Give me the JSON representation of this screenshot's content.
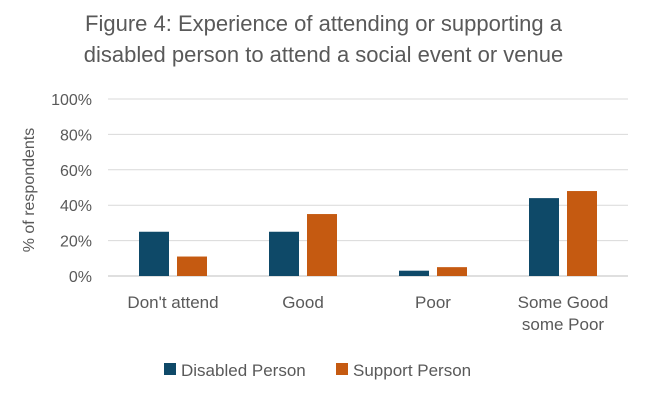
{
  "chart_data": {
    "type": "bar",
    "title_lines": [
      "Figure 4: Experience of attending or supporting a",
      "disabled person to attend a social event or venue"
    ],
    "ylabel": "% of respondents",
    "xlabel": "",
    "ylim": [
      0,
      100
    ],
    "yticks": [
      "0%",
      "20%",
      "40%",
      "60%",
      "80%",
      "100%"
    ],
    "ytick_values": [
      0,
      20,
      40,
      60,
      80,
      100
    ],
    "grid": true,
    "legend_position": "bottom",
    "categories": [
      [
        "Don't attend"
      ],
      [
        "Good"
      ],
      [
        "Poor"
      ],
      [
        "Some Good",
        "some Poor"
      ]
    ],
    "series": [
      {
        "name": "Disabled Person",
        "color": "#0e4968",
        "values": [
          25,
          25,
          3,
          44
        ]
      },
      {
        "name": "Support Person",
        "color": "#c55a11",
        "values": [
          11,
          35,
          5,
          48
        ]
      }
    ]
  }
}
